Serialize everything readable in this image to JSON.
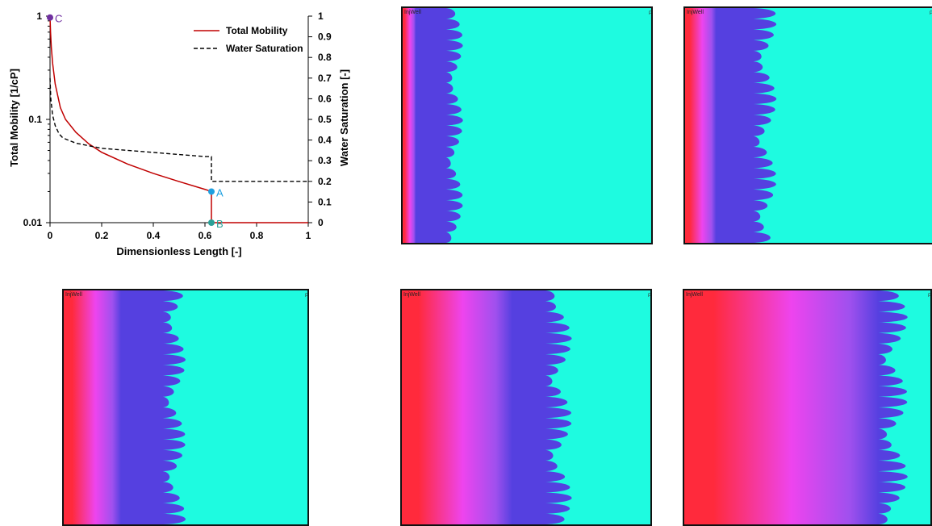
{
  "chart_data": {
    "type": "line",
    "xlabel": "Dimensionless Length [-]",
    "ylabel_left": "Total Mobility  [1/cP]",
    "ylabel_right": "Water Saturation  [-]",
    "xlim": [
      0,
      1
    ],
    "ylim_left": [
      0.01,
      1
    ],
    "ylim_left_scale": "log",
    "ylim_right": [
      0,
      1
    ],
    "x_ticks": [
      "0",
      "0.2",
      "0.4",
      "0.6",
      "0.8",
      "1"
    ],
    "y_left_ticks": [
      "0.01",
      "0.1",
      "1"
    ],
    "y_right_ticks": [
      "0",
      "0.1",
      "0.2",
      "0.3",
      "0.4",
      "0.5",
      "0.6",
      "0.7",
      "0.8",
      "0.9",
      "1"
    ],
    "legend_position": "top-right",
    "series": [
      {
        "name": "Total Mobility",
        "color": "#c00000",
        "style": "solid",
        "axis": "left",
        "x": [
          0,
          0.002,
          0.005,
          0.01,
          0.02,
          0.04,
          0.06,
          0.1,
          0.15,
          0.2,
          0.3,
          0.4,
          0.5,
          0.6,
          0.625,
          0.625,
          1
        ],
        "y": [
          0.98,
          0.7,
          0.5,
          0.35,
          0.22,
          0.13,
          0.1,
          0.075,
          0.058,
          0.048,
          0.037,
          0.03,
          0.025,
          0.021,
          0.02,
          0.01,
          0.01
        ]
      },
      {
        "name": "Water Saturation",
        "color": "#000000",
        "style": "dashed",
        "axis": "right",
        "x": [
          0,
          0.003,
          0.01,
          0.02,
          0.035,
          0.05,
          0.1,
          0.2,
          0.3,
          0.4,
          0.5,
          0.6,
          0.625,
          0.625,
          1
        ],
        "y": [
          0.7,
          0.6,
          0.52,
          0.47,
          0.43,
          0.41,
          0.385,
          0.36,
          0.35,
          0.34,
          0.33,
          0.32,
          0.32,
          0.2,
          0.2
        ]
      }
    ],
    "points": [
      {
        "label": "C",
        "x": 0,
        "y": 0.97,
        "color": "#7030a0"
      },
      {
        "label": "A",
        "x": 0.625,
        "y": 0.02,
        "color": "#1fa0e0"
      },
      {
        "label": "B",
        "x": 0.625,
        "y": 0.01,
        "color": "#2aa198"
      }
    ]
  },
  "panels": [
    {
      "title": "InjWell",
      "tag": "P",
      "front": 0.22,
      "amp": 0.05
    },
    {
      "title": "InjWell",
      "tag": "P",
      "front": 0.34,
      "amp": 0.07
    },
    {
      "title": "InjWell",
      "tag": "P",
      "front": 0.47,
      "amp": 0.07
    },
    {
      "title": "InjWell",
      "tag": "P",
      "front": 0.65,
      "amp": 0.08
    },
    {
      "title": "InjWell",
      "tag": "P",
      "front": 0.87,
      "amp": 0.09
    }
  ],
  "colors": {
    "injected": "#ff2a3c",
    "mid": "#ee44ee",
    "front": "#5540e0",
    "resident": "#1efbe0"
  }
}
